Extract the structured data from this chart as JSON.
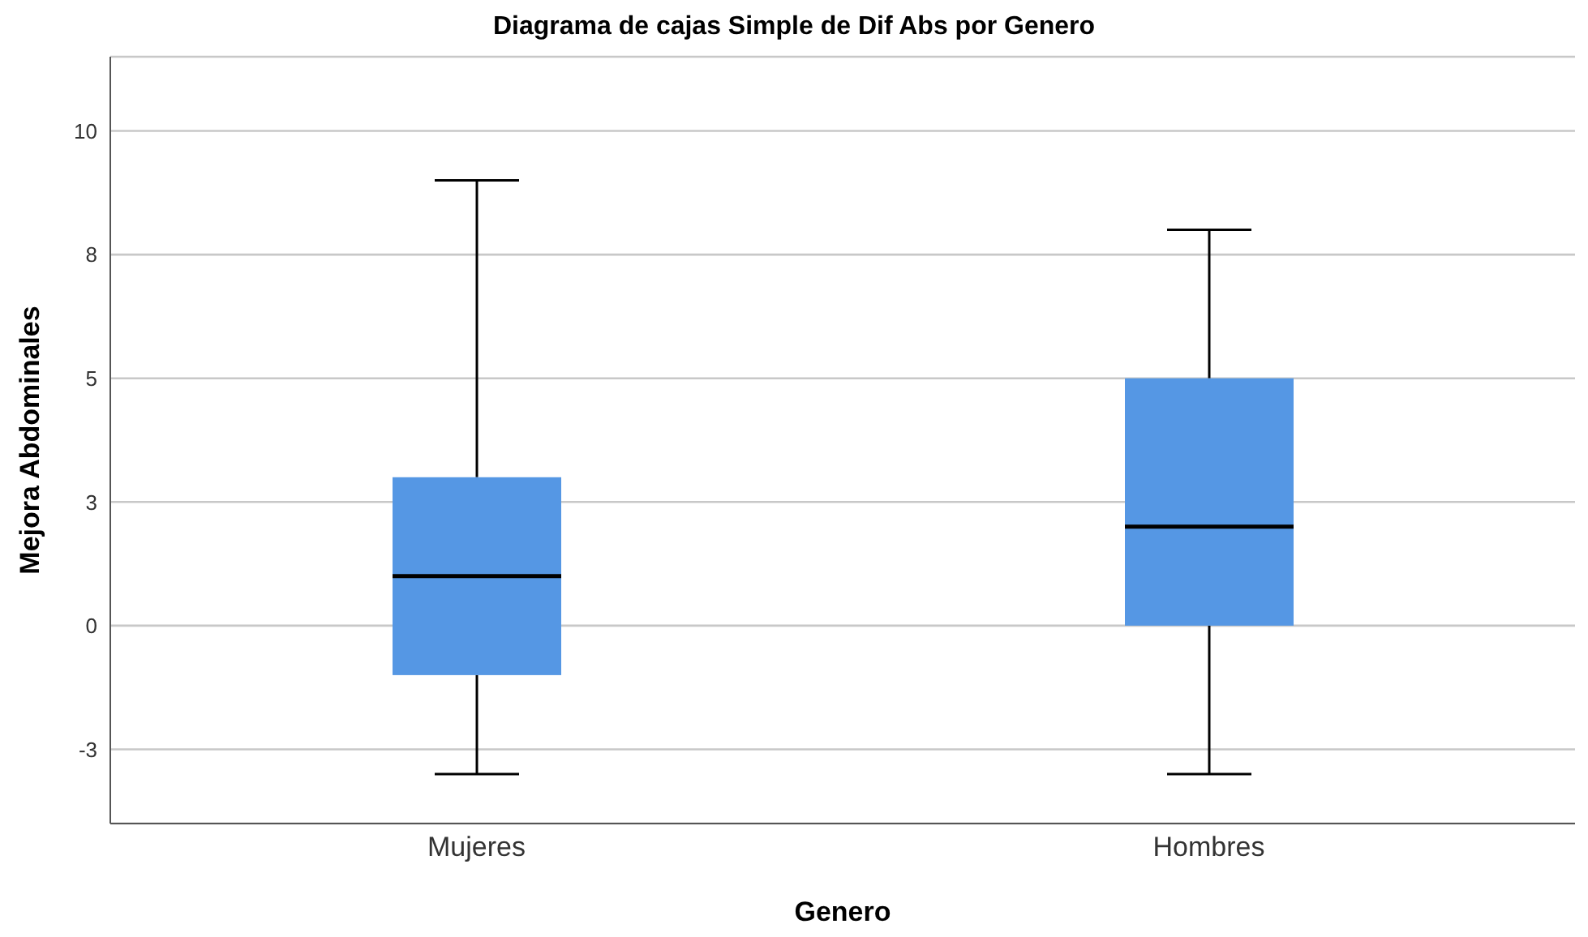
{
  "chart_data": {
    "type": "box",
    "title": "Diagrama de cajas Simple de Dif Abs por Genero",
    "xlabel": "Genero",
    "ylabel": "Mejora Abdominales",
    "categories": [
      "Mujeres",
      "Hombres"
    ],
    "boxes": [
      {
        "low": -3,
        "q1": -1,
        "median": 1,
        "q3": 3,
        "high": 9
      },
      {
        "low": -3,
        "q1": 0,
        "median": 2,
        "q3": 5,
        "high": 8
      }
    ],
    "color": "#5597e4",
    "ylim": [
      -4,
      11.5
    ],
    "yticks": [
      {
        "value": -2.5,
        "label": "-3"
      },
      0,
      {
        "value": 2.5,
        "label": "3"
      },
      5,
      {
        "value": 7.5,
        "label": "8"
      },
      10
    ],
    "grid": "y",
    "legend": false
  }
}
